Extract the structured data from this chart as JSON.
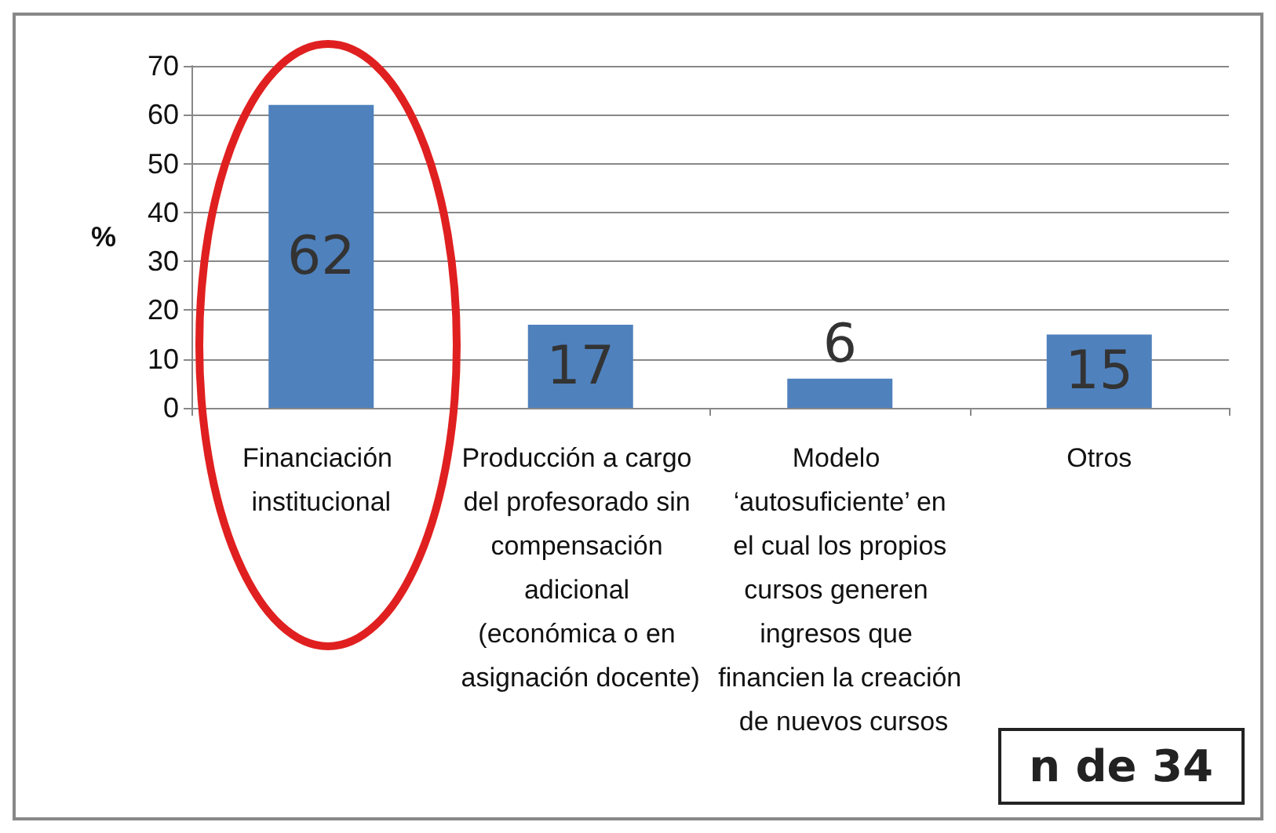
{
  "chart_data": {
    "type": "bar",
    "ylabel": "%",
    "categories": [
      "Financiación institucional",
      "Producción a cargo del profesorado sin compensación adicional (económica o en asignación docente)",
      "Modelo ‘autosuficiente’ en el cual los propios cursos generen ingresos que financien la creación de nuevos cursos",
      "Otros"
    ],
    "values": [
      62,
      17,
      6,
      15
    ],
    "color": "#4f81bd",
    "ylim": [
      0,
      70
    ],
    "yticks": [
      0,
      10,
      20,
      30,
      40,
      50,
      60,
      70
    ],
    "grid": "y",
    "data_labels": true,
    "annotations": [
      "n de 34"
    ]
  }
}
